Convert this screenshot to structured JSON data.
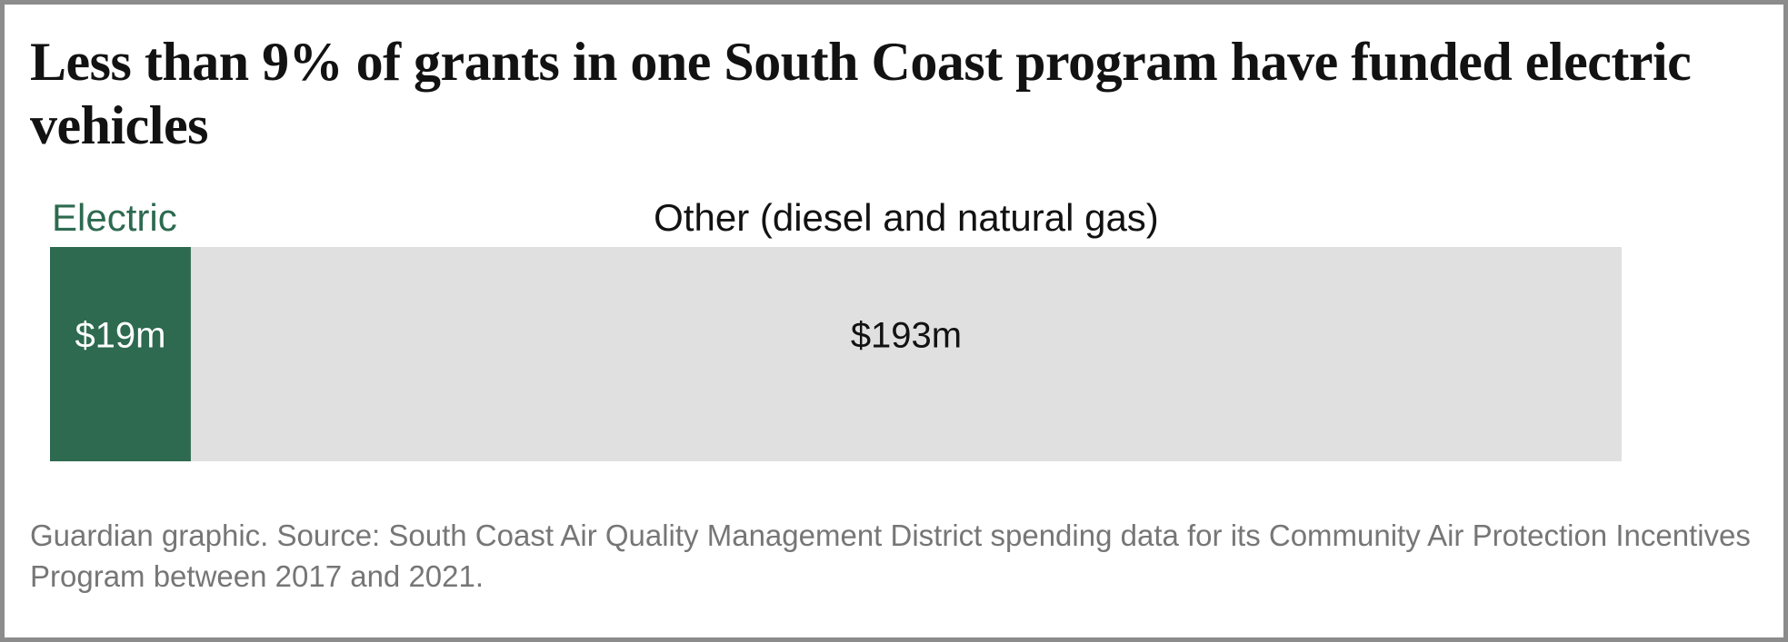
{
  "chart_data": {
    "type": "stacked-bar",
    "title": "Less than 9% of grants in one South Coast program have funded electric vehicles",
    "series": [
      {
        "name": "Electric",
        "color": "#2d6a50",
        "label_color": "#2d6a50",
        "text_color": "#ffffff",
        "values": [
          19
        ],
        "value_labels": [
          "$19m"
        ]
      },
      {
        "name": "Other (diesel and natural gas)",
        "color": "#e0e0e0",
        "label_color": "#121212",
        "text_color": "#121212",
        "values": [
          193
        ],
        "value_labels": [
          "$193m"
        ]
      }
    ],
    "source": "Guardian graphic. Source: South Coast Air Quality Management District spending data for its Community Air Protection Incentives Program between 2017 and 2021."
  }
}
